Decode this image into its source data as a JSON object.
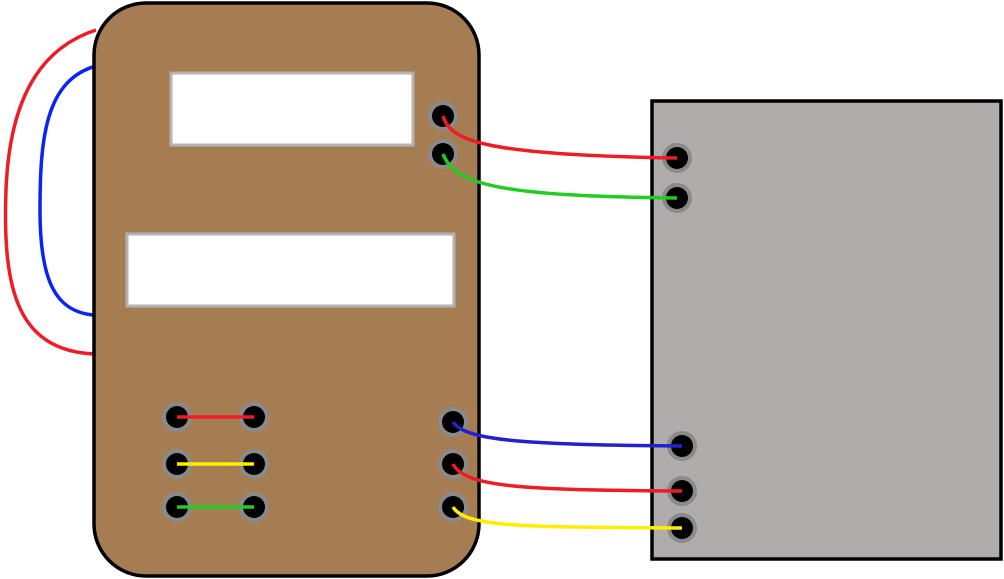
{
  "colors": {
    "background": "#ffffff",
    "panel_fill": "#a67c52",
    "panel_stroke": "#000000",
    "display_fill": "#ffffff",
    "display_stroke": "#b3b3b3",
    "box_fill": "#b0acac",
    "box_stroke": "#000000",
    "terminal_ring": "#8a8a8a",
    "terminal_hole": "#000000"
  },
  "wires": [
    {
      "id": "loop-red",
      "color": "#ee1c24",
      "from": "panel-left-edge",
      "to": "panel-left-edge"
    },
    {
      "id": "loop-blue",
      "color": "#0b24f5",
      "from": "panel-left-edge",
      "to": "panel-left-edge"
    },
    {
      "id": "upper-red",
      "color": "#ee1c24",
      "from": "panel-terminal-upper-1",
      "to": "box-terminal-upper-1"
    },
    {
      "id": "upper-green",
      "color": "#22cc22",
      "from": "panel-terminal-upper-2",
      "to": "box-terminal-upper-2"
    },
    {
      "id": "jumper-red",
      "color": "#ee1c24",
      "from": "panel-jumper-left-1",
      "to": "panel-jumper-right-1"
    },
    {
      "id": "jumper-yellow",
      "color": "#ffee00",
      "from": "panel-jumper-left-2",
      "to": "panel-jumper-right-2"
    },
    {
      "id": "jumper-green",
      "color": "#22cc22",
      "from": "panel-jumper-left-3",
      "to": "panel-jumper-right-3"
    },
    {
      "id": "lower-blue",
      "color": "#2222cc",
      "from": "panel-terminal-lower-1",
      "to": "box-terminal-lower-1"
    },
    {
      "id": "lower-red",
      "color": "#ee1c24",
      "from": "panel-terminal-lower-2",
      "to": "box-terminal-lower-2"
    },
    {
      "id": "lower-yellow",
      "color": "#ffee00",
      "from": "panel-terminal-lower-3",
      "to": "box-terminal-lower-3"
    }
  ]
}
